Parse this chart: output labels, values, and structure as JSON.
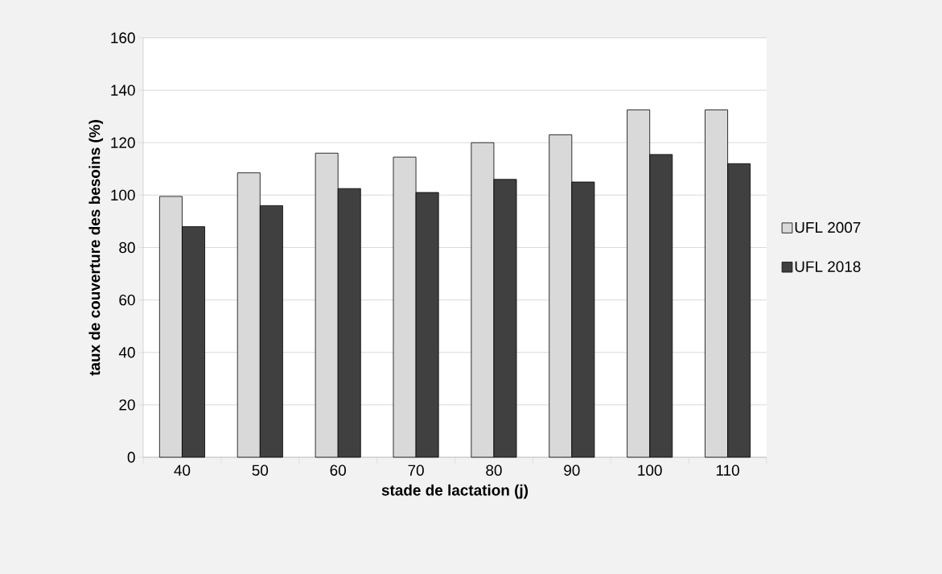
{
  "chart_data": {
    "type": "bar",
    "xlabel": "stade de lactation (j)",
    "ylabel": "taux de couverture des besoins (%)",
    "categories": [
      "40",
      "50",
      "60",
      "70",
      "80",
      "90",
      "100",
      "110"
    ],
    "series": [
      {
        "name": "UFL 2007",
        "color": "#d9d9d9",
        "values": [
          99.5,
          108.5,
          116,
          114.5,
          120,
          123,
          132.5,
          132.5
        ]
      },
      {
        "name": "UFL 2018",
        "color": "#404040",
        "values": [
          88,
          96,
          102.5,
          101,
          106,
          105,
          115.5,
          112
        ]
      }
    ],
    "ylim": [
      0,
      160
    ],
    "yticks": [
      0,
      20,
      40,
      60,
      80,
      100,
      120,
      140,
      160
    ],
    "grid": "y",
    "legend": "right"
  }
}
